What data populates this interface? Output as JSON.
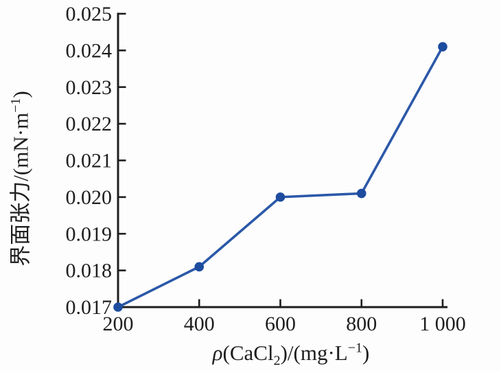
{
  "figure": {
    "background": "#fdfdfd",
    "axis_color": "#1e1e1e",
    "line_color": "#2b58a8",
    "marker_color": "#1d4c9f"
  },
  "chart_data": {
    "type": "line",
    "title": "",
    "series_name": "interfacial-tension-vs-cacl2",
    "x": [
      200,
      400,
      600,
      800,
      1000
    ],
    "y": [
      0.017,
      0.0181,
      0.02,
      0.0201,
      0.0241
    ],
    "xlabel": "ρ(CaCl2)/(mg·L−1)",
    "ylabel": "界面张力/(mN·m−1)",
    "xlim": [
      200,
      1000
    ],
    "ylim": [
      0.017,
      0.025
    ],
    "xticks": {
      "values": [
        200,
        400,
        600,
        800,
        1000
      ],
      "labels": [
        "200",
        "400",
        "600",
        "800",
        "1 000"
      ]
    },
    "yticks": {
      "values": [
        0.017,
        0.018,
        0.019,
        0.02,
        0.021,
        0.022,
        0.023,
        0.024,
        0.025
      ],
      "labels": [
        "0.017",
        "0.018",
        "0.019",
        "0.020",
        "0.021",
        "0.022",
        "0.023",
        "0.024",
        "0.025"
      ]
    },
    "grid": false,
    "legend": null,
    "marker": "circle",
    "tick_direction": "in"
  },
  "labels": {
    "xlabel_rho": "ρ",
    "xlabel_p1": "(CaCl",
    "xlabel_sub": "2",
    "xlabel_p2": ")/(mg·L",
    "xlabel_sup": "−1",
    "xlabel_p3": ")",
    "ylabel_p1": "界面张力/(mN·m",
    "ylabel_sup": "−1",
    "ylabel_p2": ")"
  }
}
